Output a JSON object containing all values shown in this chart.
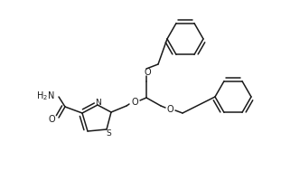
{
  "background_color": "#ffffff",
  "line_color": "#1a1a1a",
  "line_width": 1.1,
  "font_size": 6.5,
  "figsize": [
    3.11,
    1.89
  ],
  "dpi": 100,
  "xlim": [
    0,
    311
  ],
  "ylim": [
    189,
    0
  ]
}
